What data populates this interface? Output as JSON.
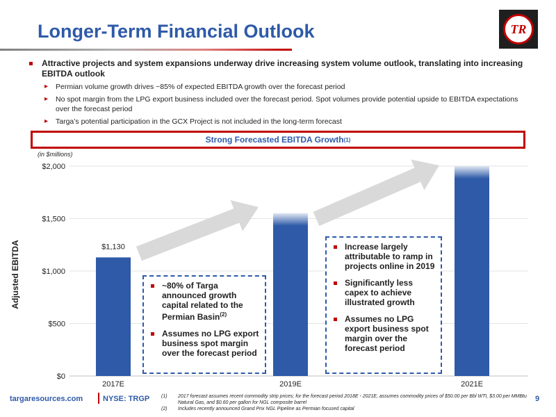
{
  "slide": {
    "title": "Longer-Term Financial Outlook",
    "logo_text": "TR"
  },
  "bullets": {
    "main": "Attractive projects and system expansions underway drive increasing system volume outlook, translating into increasing EBITDA outlook",
    "subs": [
      "Permian volume growth drives ~85% of expected EBITDA growth over the forecast period",
      "No spot margin from the LPG export business included over the forecast period.  Spot volumes provide potential upside to EBITDA expectations over the forecast period",
      "Targa’s potential participation in the GCX Project is not included in the long-term forecast"
    ]
  },
  "banner": {
    "text": "Strong Forecasted EBITDA Growth",
    "sup": "(1)"
  },
  "chart_data": {
    "type": "bar",
    "units_note": "(in $millions)",
    "ylabel": "Adjusted EBITDA",
    "categories": [
      "2017E",
      "2019E",
      "2021E"
    ],
    "values": [
      1130,
      1550,
      2000
    ],
    "data_labels": [
      "$1,130",
      "",
      ""
    ],
    "ylim": [
      0,
      2000
    ],
    "yticks": [
      0,
      500,
      1000,
      1500,
      2000
    ],
    "ytick_labels": [
      "$0",
      "$500",
      "$1,000",
      "$1,500",
      "$2,000"
    ],
    "grid": true,
    "bar_color": "#2e5aa8",
    "arrow_color": "#d9d9d9"
  },
  "callouts": {
    "left": [
      {
        "text": "~80% of Targa announced growth capital related to the Permian Basin",
        "sup": "(2)"
      },
      {
        "text": "Assumes no LPG export business spot margin over the forecast period",
        "sup": ""
      }
    ],
    "right": [
      {
        "text": "Increase largely attributable to ramp in projects online in 2019",
        "sup": ""
      },
      {
        "text": "Significantly less capex to achieve illustrated growth",
        "sup": ""
      },
      {
        "text": "Assumes no LPG export business spot margin over the forecast period",
        "sup": ""
      }
    ]
  },
  "footer": {
    "site": "targaresources.com",
    "ticker": "NYSE: TRGP",
    "page": "9",
    "footnotes": [
      {
        "num": "(1)",
        "text": "2017 forecast assumes recent commodity strip prices; for the forecast period 2018E - 2021E, assumes commodity prices of $50.00 per Bbl WTI, $3.00 per MMBtu Natural Gas, and $0.60 per gallon for NGL composite barrel"
      },
      {
        "num": "(2)",
        "text": "Includes recently announced Grand Prix NGL Pipeline as Permian focused capital"
      }
    ]
  },
  "colors": {
    "brand_blue": "#2e5aa8",
    "accent_red": "#c00000"
  }
}
